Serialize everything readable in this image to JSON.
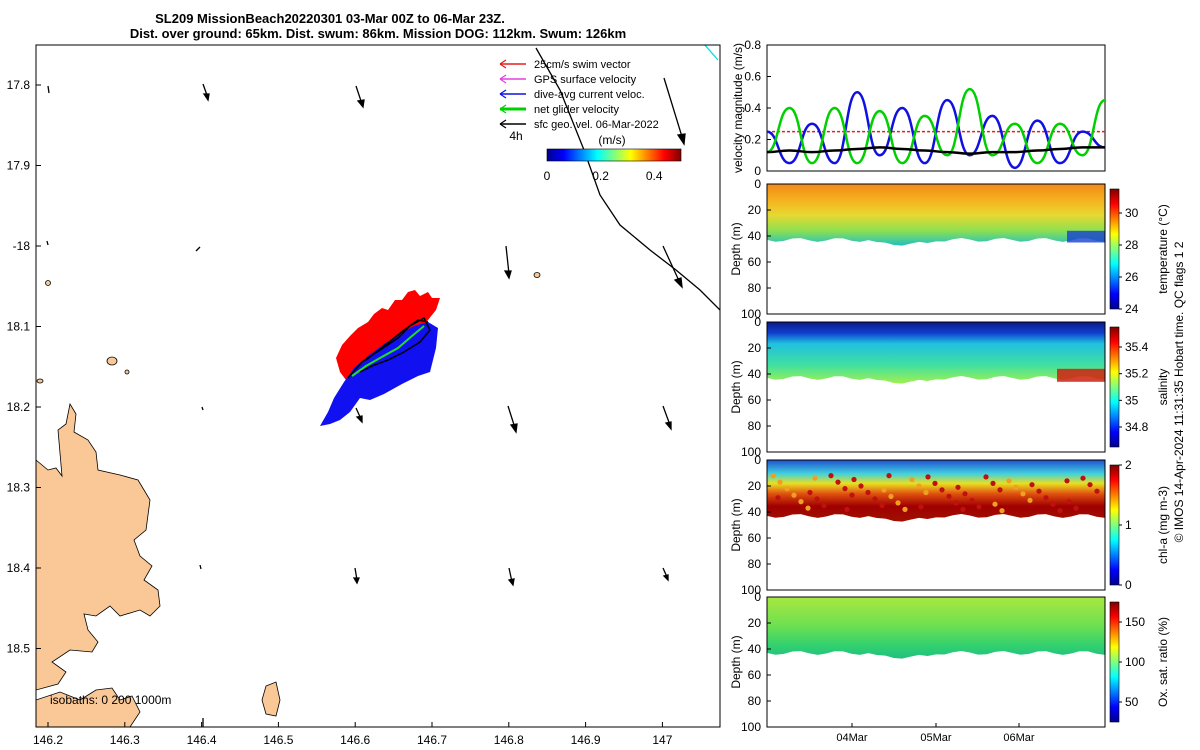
{
  "title_line1": "SL209 MissionBeach20220301 03-Mar 00Z to 06-Mar 23Z.",
  "title_line2": "Dist. over ground: 65km. Dist. swum: 86km. Mission DOG: 112km. Swum: 126km",
  "map": {
    "lat_ticks": [
      "17.8",
      "17.9",
      "-18",
      "18.1",
      "18.2",
      "18.3",
      "18.4",
      "18.5"
    ],
    "lon_ticks": [
      "146.2",
      "146.3",
      "146.4",
      "146.5",
      "146.6",
      "146.7",
      "146.8",
      "146.9",
      "147"
    ],
    "isobaths_label": "isobaths: 0   200  1000m",
    "legend": [
      {
        "label": "25cm/s swim vector",
        "color": "#e02020"
      },
      {
        "label": "GPS surface velocity",
        "color": "#e040e0"
      },
      {
        "label": "dive-avg current veloc.",
        "color": "#1010e0"
      },
      {
        "label": "net glider velocity",
        "color": "#00d000"
      },
      {
        "label": "sfc geo. vel. 06-Mar-2022",
        "color": "#000000"
      }
    ],
    "scale_label": "4h",
    "colorbar_unit": "(m/s)",
    "colorbar_ticks": [
      "0",
      "0.2",
      "0.4"
    ],
    "land_color": "#f9c896"
  },
  "chart_data": [
    {
      "type": "line",
      "title": "",
      "ylabel": "velocity magnitude (m/s)",
      "ylim": [
        0,
        0.8
      ],
      "yticks": [
        "0",
        "0.2",
        "0.4",
        "0.6",
        "0.8"
      ],
      "series": [
        {
          "name": "25cm/s swim vector",
          "color": "#e02020",
          "values": [
            0.25,
            0.25,
            0.25,
            0.25,
            0.25,
            0.25,
            0.25,
            0.25,
            0.25,
            0.25,
            0.25,
            0.25,
            0.25,
            0.25,
            0.25,
            0.25
          ]
        },
        {
          "name": "dive-avg current veloc.",
          "color": "#1010e0",
          "values": [
            0.25,
            0.05,
            0.3,
            0.05,
            0.5,
            0.1,
            0.4,
            0.05,
            0.45,
            0.1,
            0.35,
            0.02,
            0.32,
            0.05,
            0.25,
            0.15
          ]
        },
        {
          "name": "net glider velocity",
          "color": "#00d000",
          "values": [
            0.12,
            0.4,
            0.05,
            0.4,
            0.05,
            0.38,
            0.05,
            0.35,
            0.1,
            0.52,
            0.1,
            0.3,
            0.05,
            0.3,
            0.1,
            0.45
          ]
        },
        {
          "name": "sfc geo. vel.",
          "color": "#000000",
          "values": [
            0.12,
            0.13,
            0.12,
            0.13,
            0.14,
            0.15,
            0.14,
            0.13,
            0.12,
            0.11,
            0.12,
            0.12,
            0.13,
            0.14,
            0.15,
            0.15
          ]
        }
      ]
    },
    {
      "type": "heatmap",
      "variable": "temperature",
      "ylabel": "Depth (m)",
      "cbar_label": "temperature (°C)",
      "depth_ticks": [
        "0",
        "20",
        "40",
        "60",
        "80",
        "100"
      ],
      "cbar_ticks": [
        "24",
        "26",
        "28",
        "30"
      ],
      "cbar_range": [
        24,
        31.5
      ]
    },
    {
      "type": "heatmap",
      "variable": "salinity",
      "ylabel": "Depth (m)",
      "cbar_label": "salinity",
      "depth_ticks": [
        "0",
        "20",
        "40",
        "60",
        "80",
        "100"
      ],
      "cbar_ticks": [
        "34.8",
        "35",
        "35.2",
        "35.4"
      ],
      "cbar_range": [
        34.65,
        35.55
      ]
    },
    {
      "type": "heatmap",
      "variable": "chl-a",
      "ylabel": "Depth (m)",
      "cbar_label": "chl-a (mg m-3)",
      "depth_ticks": [
        "0",
        "20",
        "40",
        "60",
        "80",
        "100"
      ],
      "cbar_ticks": [
        "0",
        "1",
        "2"
      ],
      "cbar_range": [
        0,
        2
      ]
    },
    {
      "type": "heatmap",
      "variable": "oxygen saturation",
      "ylabel": "Depth (m)",
      "cbar_label": "Ox. sat. ratio (%)",
      "depth_ticks": [
        "0",
        "20",
        "40",
        "60",
        "80",
        "100"
      ],
      "cbar_ticks": [
        "50",
        "100",
        "150"
      ],
      "cbar_range": [
        25,
        175
      ],
      "xticks": [
        "04Mar",
        "05Mar",
        "06Mar"
      ]
    }
  ],
  "side_note": "© IMOS 14-Apr-2024 11:31:35 Hobart time. QC flags 1  2"
}
